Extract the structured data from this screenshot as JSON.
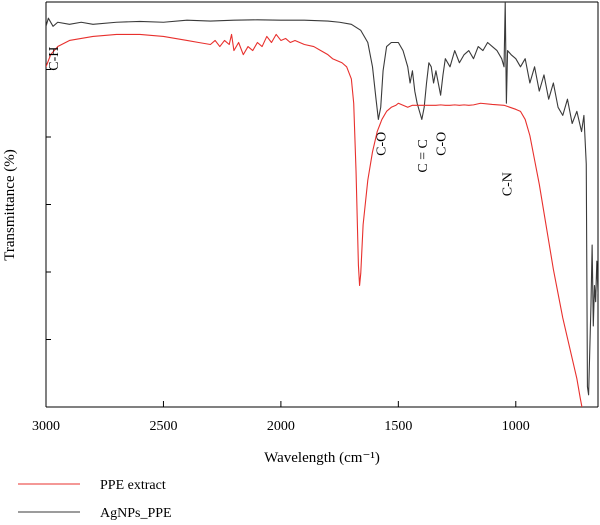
{
  "chart_data": {
    "type": "line",
    "xlabel": "Wavelength (cm⁻¹)",
    "ylabel": "Transmittance (%)",
    "xlim": [
      3000,
      650
    ],
    "ylim": [
      0,
      100
    ],
    "x_ticks": [
      3000,
      2500,
      2000,
      1500,
      1000
    ],
    "y_axis_numbers_shown": false,
    "grid": false,
    "legend_position": "bottom-left",
    "annotations": [
      {
        "text": "C-H",
        "x": 2970,
        "y": 86
      },
      {
        "text": "C-O",
        "x": 1575,
        "y": 65
      },
      {
        "text": "C = C",
        "x": 1400,
        "y": 62
      },
      {
        "text": "C-O",
        "x": 1320,
        "y": 65
      },
      {
        "text": "C-N",
        "x": 1040,
        "y": 55
      }
    ],
    "series": [
      {
        "name": "AgNPs_PPE",
        "color": "#3a3a3a",
        "points": [
          [
            3000,
            94
          ],
          [
            2990,
            96
          ],
          [
            2970,
            94
          ],
          [
            2950,
            95
          ],
          [
            2900,
            94.5
          ],
          [
            2850,
            95
          ],
          [
            2800,
            94.5
          ],
          [
            2700,
            95
          ],
          [
            2600,
            95.2
          ],
          [
            2500,
            95
          ],
          [
            2400,
            95.5
          ],
          [
            2300,
            95.3
          ],
          [
            2200,
            95.5
          ],
          [
            2100,
            95.6
          ],
          [
            2000,
            95.5
          ],
          [
            1900,
            95.5
          ],
          [
            1800,
            95.3
          ],
          [
            1750,
            95
          ],
          [
            1700,
            94.5
          ],
          [
            1660,
            93
          ],
          [
            1630,
            90
          ],
          [
            1610,
            84
          ],
          [
            1595,
            76
          ],
          [
            1585,
            71
          ],
          [
            1575,
            74
          ],
          [
            1565,
            83
          ],
          [
            1550,
            89
          ],
          [
            1530,
            90
          ],
          [
            1500,
            90
          ],
          [
            1480,
            88
          ],
          [
            1460,
            84
          ],
          [
            1450,
            80
          ],
          [
            1440,
            83
          ],
          [
            1430,
            78
          ],
          [
            1420,
            75
          ],
          [
            1410,
            73
          ],
          [
            1400,
            71
          ],
          [
            1390,
            74
          ],
          [
            1380,
            80
          ],
          [
            1370,
            85
          ],
          [
            1360,
            84
          ],
          [
            1350,
            80
          ],
          [
            1340,
            83
          ],
          [
            1320,
            77
          ],
          [
            1310,
            82
          ],
          [
            1300,
            86
          ],
          [
            1280,
            84
          ],
          [
            1260,
            88
          ],
          [
            1240,
            85
          ],
          [
            1220,
            87
          ],
          [
            1200,
            88
          ],
          [
            1180,
            86
          ],
          [
            1160,
            89
          ],
          [
            1140,
            88
          ],
          [
            1120,
            90
          ],
          [
            1100,
            89
          ],
          [
            1080,
            88
          ],
          [
            1060,
            86
          ],
          [
            1050,
            84
          ],
          [
            1045,
            100
          ],
          [
            1040,
            75
          ],
          [
            1035,
            88
          ],
          [
            1020,
            87
          ],
          [
            1000,
            86
          ],
          [
            980,
            84
          ],
          [
            960,
            86
          ],
          [
            940,
            80
          ],
          [
            920,
            84
          ],
          [
            900,
            78
          ],
          [
            880,
            82
          ],
          [
            860,
            76
          ],
          [
            840,
            80
          ],
          [
            820,
            74
          ],
          [
            800,
            72
          ],
          [
            780,
            76
          ],
          [
            760,
            70
          ],
          [
            740,
            73
          ],
          [
            720,
            68
          ],
          [
            710,
            72
          ],
          [
            700,
            60
          ],
          [
            695,
            5
          ],
          [
            690,
            3
          ],
          [
            680,
            25
          ],
          [
            675,
            40
          ],
          [
            670,
            20
          ],
          [
            665,
            30
          ],
          [
            660,
            26
          ],
          [
            655,
            36
          ],
          [
            650,
            28
          ]
        ]
      },
      {
        "name": "PPE extract",
        "color": "#e8302d",
        "points": [
          [
            3000,
            84
          ],
          [
            2980,
            87
          ],
          [
            2950,
            89
          ],
          [
            2900,
            90.5
          ],
          [
            2800,
            91.5
          ],
          [
            2700,
            92
          ],
          [
            2600,
            92
          ],
          [
            2500,
            91.5
          ],
          [
            2450,
            91
          ],
          [
            2400,
            90.5
          ],
          [
            2350,
            90
          ],
          [
            2300,
            89.5
          ],
          [
            2280,
            90.5
          ],
          [
            2260,
            89
          ],
          [
            2240,
            90.5
          ],
          [
            2220,
            89.5
          ],
          [
            2210,
            92
          ],
          [
            2200,
            88
          ],
          [
            2180,
            90
          ],
          [
            2160,
            87
          ],
          [
            2140,
            89
          ],
          [
            2120,
            88
          ],
          [
            2100,
            90
          ],
          [
            2080,
            89
          ],
          [
            2060,
            91.5
          ],
          [
            2040,
            90
          ],
          [
            2020,
            92
          ],
          [
            2000,
            90.5
          ],
          [
            1980,
            91
          ],
          [
            1960,
            90
          ],
          [
            1940,
            90.5
          ],
          [
            1900,
            89.5
          ],
          [
            1860,
            89
          ],
          [
            1830,
            88
          ],
          [
            1800,
            87
          ],
          [
            1780,
            86
          ],
          [
            1760,
            85.5
          ],
          [
            1740,
            85
          ],
          [
            1720,
            84
          ],
          [
            1700,
            81
          ],
          [
            1690,
            75
          ],
          [
            1680,
            58
          ],
          [
            1670,
            35
          ],
          [
            1665,
            30
          ],
          [
            1660,
            33
          ],
          [
            1650,
            45
          ],
          [
            1630,
            56
          ],
          [
            1610,
            63
          ],
          [
            1590,
            68
          ],
          [
            1570,
            71
          ],
          [
            1550,
            73
          ],
          [
            1530,
            74
          ],
          [
            1510,
            74.5
          ],
          [
            1500,
            75
          ],
          [
            1480,
            74.5
          ],
          [
            1460,
            74
          ],
          [
            1440,
            74.5
          ],
          [
            1420,
            74.5
          ],
          [
            1400,
            74.5
          ],
          [
            1380,
            74.5
          ],
          [
            1360,
            74.5
          ],
          [
            1340,
            74.5
          ],
          [
            1320,
            74.6
          ],
          [
            1300,
            74.5
          ],
          [
            1280,
            74.5
          ],
          [
            1260,
            74.6
          ],
          [
            1240,
            74.5
          ],
          [
            1220,
            74.6
          ],
          [
            1200,
            74.5
          ],
          [
            1180,
            74.6
          ],
          [
            1150,
            75
          ],
          [
            1100,
            74.7
          ],
          [
            1050,
            74.5
          ],
          [
            1000,
            73.5
          ],
          [
            980,
            73
          ],
          [
            960,
            71
          ],
          [
            940,
            67
          ],
          [
            920,
            61
          ],
          [
            900,
            55
          ],
          [
            880,
            48
          ],
          [
            860,
            41
          ],
          [
            840,
            34
          ],
          [
            820,
            28
          ],
          [
            800,
            22
          ],
          [
            780,
            17
          ],
          [
            760,
            12
          ],
          [
            740,
            7
          ],
          [
            725,
            2
          ],
          [
            715,
            -1
          ]
        ]
      }
    ]
  }
}
